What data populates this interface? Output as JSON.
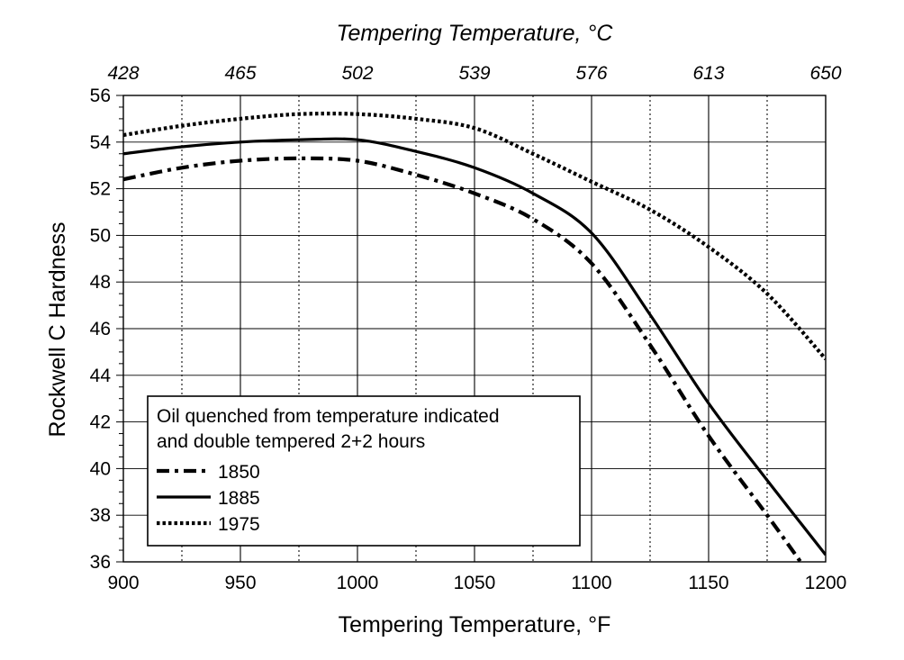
{
  "chart_data": {
    "type": "line",
    "title": "",
    "top_axis": {
      "title": "Tempering Temperature, °C",
      "tick_labels": [
        "428",
        "465",
        "502",
        "539",
        "576",
        "613",
        "650"
      ],
      "tick_positions_f": [
        900,
        950,
        1000,
        1050,
        1100,
        1150,
        1200
      ]
    },
    "xlabel": "Tempering Temperature, °F",
    "ylabel": "Rockwell C Hardness",
    "xlim": [
      900,
      1200
    ],
    "ylim": [
      36,
      56
    ],
    "x_ticks": [
      900,
      950,
      1000,
      1050,
      1100,
      1150,
      1200
    ],
    "x_tick_labels": [
      "900",
      "950",
      "1000",
      "1050",
      "1100",
      "1150",
      "1200"
    ],
    "y_ticks": [
      36,
      38,
      40,
      42,
      44,
      46,
      48,
      50,
      52,
      54,
      56
    ],
    "y_tick_labels": [
      "36",
      "38",
      "40",
      "42",
      "44",
      "46",
      "48",
      "50",
      "52",
      "54",
      "56"
    ],
    "grid": true,
    "legend": {
      "position": "bottom-left",
      "title_lines": [
        "Oil quenched from temperature indicated",
        "and double tempered 2+2 hours"
      ]
    },
    "series": [
      {
        "name": "1850",
        "style": "dash-dot",
        "x": [
          900,
          925,
          950,
          975,
          1000,
          1025,
          1050,
          1075,
          1100,
          1125,
          1150,
          1175,
          1190
        ],
        "y": [
          52.4,
          52.9,
          53.2,
          53.3,
          53.2,
          52.6,
          51.8,
          50.7,
          48.8,
          45.3,
          41.4,
          38.0,
          35.9
        ]
      },
      {
        "name": "1885",
        "style": "solid",
        "x": [
          900,
          925,
          950,
          975,
          1000,
          1025,
          1050,
          1075,
          1100,
          1125,
          1150,
          1175,
          1200
        ],
        "y": [
          53.5,
          53.8,
          54.0,
          54.1,
          54.1,
          53.6,
          52.9,
          51.8,
          50.1,
          46.6,
          42.8,
          39.5,
          36.3
        ]
      },
      {
        "name": "1975",
        "style": "dotted",
        "x": [
          900,
          925,
          950,
          975,
          1000,
          1025,
          1050,
          1075,
          1100,
          1125,
          1150,
          1175,
          1200
        ],
        "y": [
          54.3,
          54.7,
          55.0,
          55.2,
          55.2,
          55.0,
          54.6,
          53.5,
          52.3,
          51.1,
          49.5,
          47.5,
          44.7
        ]
      }
    ]
  }
}
